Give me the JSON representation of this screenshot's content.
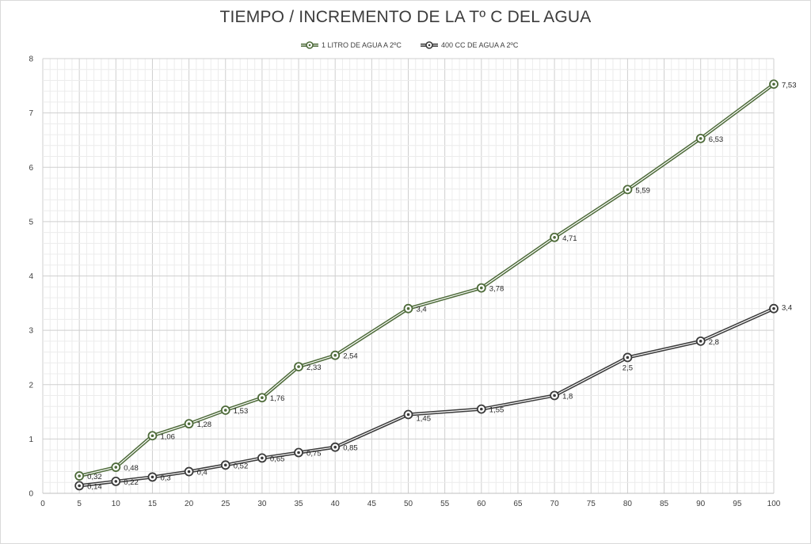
{
  "chart_data": {
    "type": "line",
    "title": "TIEMPO / INCREMENTO DE LA Tº C DEL AGUA",
    "xlabel": "",
    "ylabel": "",
    "xlim": [
      0,
      100
    ],
    "ylim": [
      0,
      8
    ],
    "x_ticks": [
      0,
      5,
      10,
      15,
      20,
      25,
      30,
      35,
      40,
      45,
      50,
      55,
      60,
      65,
      70,
      75,
      80,
      85,
      90,
      95,
      100
    ],
    "y_ticks": [
      0,
      1,
      2,
      3,
      4,
      5,
      6,
      7,
      8
    ],
    "grid": true,
    "legend_position": "top",
    "x": [
      5,
      10,
      15,
      20,
      25,
      30,
      35,
      40,
      50,
      60,
      70,
      80,
      90,
      100
    ],
    "series": [
      {
        "name": "1 LITRO DE AGUA A 2ºC",
        "color": "#4e6b3a",
        "values": [
          0.32,
          0.48,
          1.06,
          1.28,
          1.53,
          1.76,
          2.33,
          2.54,
          3.4,
          3.78,
          4.71,
          5.59,
          6.53,
          7.53
        ],
        "labels": [
          "0,32",
          "0,48",
          "1,06",
          "1,28",
          "1,53",
          "1,76",
          "2,33",
          "2,54",
          "3,4",
          "3,78",
          "4,71",
          "5,59",
          "6,53",
          "7,53"
        ]
      },
      {
        "name": "400 CC DE AGUA A 2ºC",
        "color": "#3a3a3a",
        "values": [
          0.14,
          0.22,
          0.3,
          0.4,
          0.52,
          0.65,
          0.75,
          0.85,
          1.45,
          1.55,
          1.8,
          2.5,
          2.8,
          3.4
        ],
        "labels": [
          "0,14",
          "0,22",
          "0,3",
          "0,4",
          "0,52",
          "0,65",
          "0,75",
          "0,85",
          "1,45",
          "1,55",
          "1,8",
          "2,5",
          "2,8",
          "3,4"
        ]
      }
    ]
  }
}
